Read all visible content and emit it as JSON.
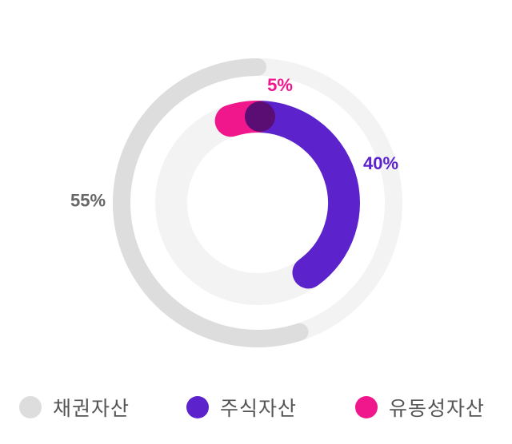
{
  "chart_data": {
    "type": "pie",
    "categories": [
      "채권자산",
      "주식자산",
      "유동성자산"
    ],
    "values": [
      55,
      40,
      5
    ],
    "labels": [
      "55%",
      "40%",
      "5%"
    ],
    "colors": [
      "#dddddd",
      "#5c22cc",
      "#f0168c"
    ],
    "track_color": "#f3f3f3",
    "overlap_color": "#5a0d73",
    "label_color_neutral": "#666666",
    "legend_position": "bottom"
  }
}
